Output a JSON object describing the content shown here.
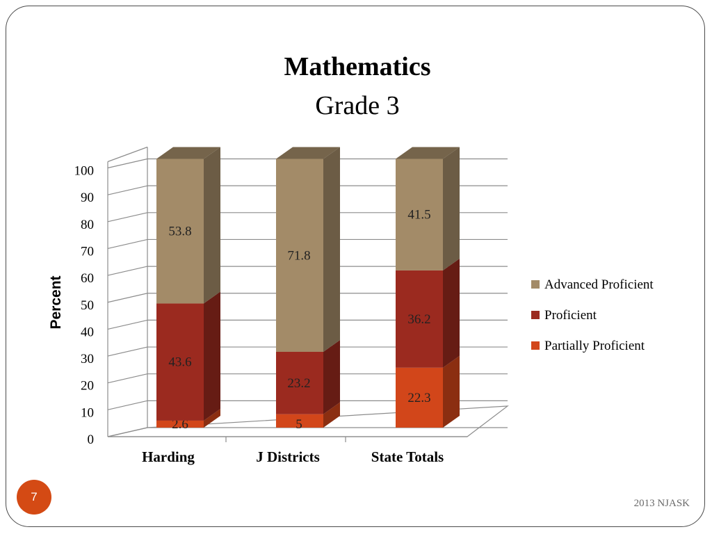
{
  "chart_data": {
    "type": "bar",
    "stacked": true,
    "title": "Mathematics",
    "subtitle": "Grade 3",
    "ylabel": "Percent",
    "ylim": [
      0,
      100
    ],
    "yticks": [
      0,
      10,
      20,
      30,
      40,
      50,
      60,
      70,
      80,
      90,
      100
    ],
    "grid": true,
    "legend_position": "right",
    "categories": [
      "Harding",
      "J Districts",
      "State Totals"
    ],
    "series": [
      {
        "name": "Partially Proficient",
        "values": [
          2.6,
          5,
          22.3
        ],
        "color": "#d2461a"
      },
      {
        "name": "Proficient",
        "values": [
          43.6,
          23.2,
          36.2
        ],
        "color": "#9b2a1f"
      },
      {
        "name": "Advanced Proficient",
        "values": [
          53.8,
          71.8,
          41.5
        ],
        "color": "#a38b68"
      }
    ],
    "legend_order": [
      "Advanced Proficient",
      "Proficient",
      "Partially Proficient"
    ]
  },
  "slide": {
    "number": "7",
    "footer": "2013 NJASK"
  },
  "colors": {
    "axis": "#8c8c8c",
    "grid": "#8c8c8c",
    "label_text": "#222222"
  }
}
